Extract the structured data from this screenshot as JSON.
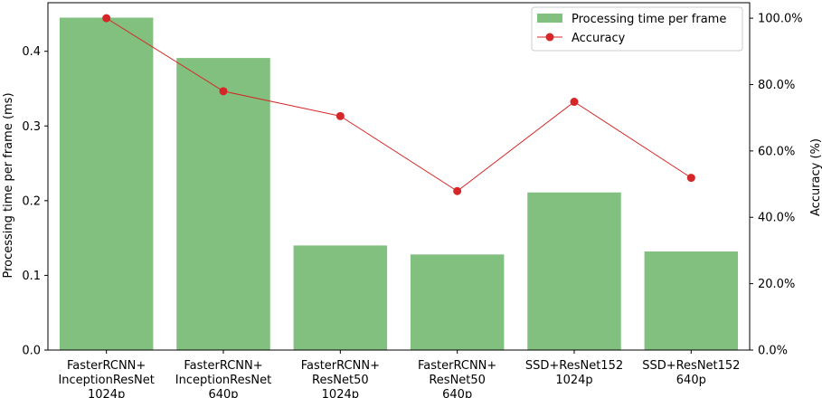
{
  "chart_data": {
    "type": "bar",
    "categories": [
      [
        "FasterRCNN+",
        "InceptionResNet",
        "1024p"
      ],
      [
        "FasterRCNN+",
        "InceptionResNet",
        "640p"
      ],
      [
        "FasterRCNN+",
        "ResNet50",
        "1024p"
      ],
      [
        "FasterRCNN+",
        "ResNet50",
        "640p"
      ],
      [
        "SSD+ResNet152",
        "1024p"
      ],
      [
        "SSD+ResNet152",
        "640p"
      ]
    ],
    "series": [
      {
        "name": "Processing time per frame",
        "type": "bar",
        "axis": "left",
        "color": "#81c07f",
        "values": [
          0.445,
          0.391,
          0.14,
          0.128,
          0.211,
          0.132
        ]
      },
      {
        "name": "Accuracy",
        "type": "line",
        "axis": "right",
        "color": "#d62728",
        "values": [
          100.0,
          78.0,
          70.5,
          47.9,
          74.8,
          51.9
        ]
      }
    ],
    "ylabel": "Processing time per frame (ms)",
    "y2label": "Accuracy (%)",
    "ylim": [
      0,
      0.465
    ],
    "y2lim": [
      0,
      1.0466
    ],
    "yticks": [
      0.0,
      0.1,
      0.2,
      0.3,
      0.4
    ],
    "y2ticks": [
      "0.0%",
      "20.0%",
      "40.0%",
      "60.0%",
      "80.0%",
      "100.0%"
    ],
    "y2tick_values": [
      0,
      20,
      40,
      60,
      80,
      100
    ],
    "legend": "top-right",
    "grid": false
  }
}
